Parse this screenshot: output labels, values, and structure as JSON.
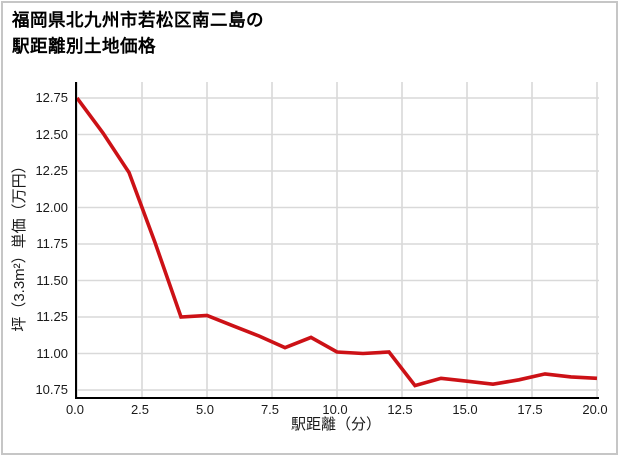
{
  "page": {
    "background": "#ffffff",
    "border_color": "#c6c6c6"
  },
  "title": {
    "line1": "福岡県北九州市若松区南二島の",
    "line2": "駅距離別土地価格"
  },
  "chart_data": {
    "type": "line",
    "title": "福岡県北九州市若松区南二島の駅距離別土地価格",
    "xlabel": "駅距離（分）",
    "ylabel": "坪（3.3m²）単価（万円）",
    "x": [
      0,
      1,
      2,
      3,
      4,
      5,
      6,
      7,
      8,
      9,
      10,
      11,
      12,
      13,
      14,
      15,
      16,
      17,
      18,
      19,
      20
    ],
    "y": [
      12.75,
      12.51,
      12.24,
      11.76,
      11.25,
      11.26,
      11.19,
      11.12,
      11.04,
      11.11,
      11.01,
      11.0,
      11.01,
      10.78,
      10.83,
      10.81,
      10.79,
      10.82,
      10.86,
      10.84,
      10.83
    ],
    "xtick_values": [
      0,
      2.5,
      5,
      7.5,
      10,
      12.5,
      15,
      17.5,
      20
    ],
    "xtick_labels": [
      "0.0",
      "2.5",
      "5.0",
      "7.5",
      "10.0",
      "12.5",
      "15.0",
      "17.5",
      "20.0"
    ],
    "ytick_values": [
      10.75,
      11.0,
      11.25,
      11.5,
      11.75,
      12.0,
      12.25,
      12.5,
      12.75
    ],
    "ytick_labels": [
      "10.75",
      "11.00",
      "11.25",
      "11.50",
      "11.75",
      "12.00",
      "12.25",
      "12.50",
      "12.75"
    ],
    "xlim": [
      0,
      20.1
    ],
    "ylim": [
      10.7,
      12.86
    ],
    "grid": true,
    "line_color": "#cc1116",
    "grid_color": "#d9d9d9",
    "axis_color": "#000000",
    "legend": "none"
  }
}
